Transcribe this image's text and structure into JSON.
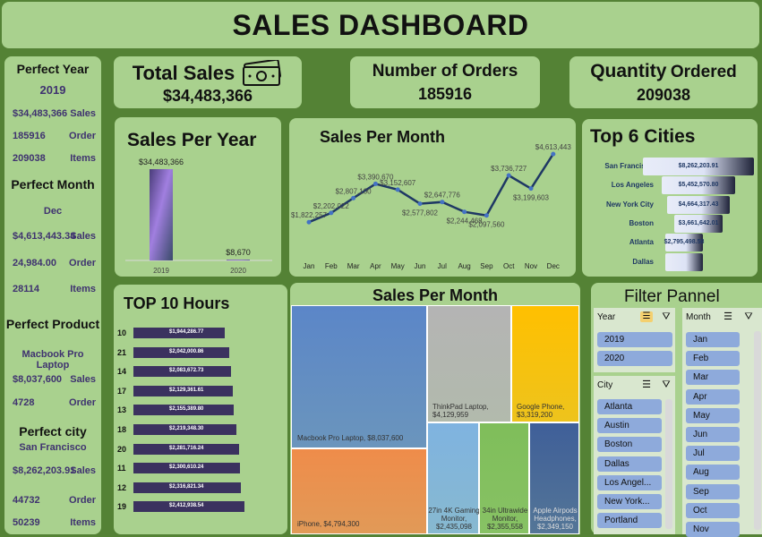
{
  "title": "SALES DASHBOARD",
  "left": {
    "perfect_year": {
      "title": "Perfect Year",
      "year": "2019",
      "sales": "$34,483,366",
      "sales_label": "Sales",
      "orders": "185916",
      "orders_label": "Order",
      "items": "209038",
      "items_label": "Items"
    },
    "perfect_month": {
      "title": "Perfect Month",
      "month": "Dec",
      "sales": "$4,613,443.34",
      "sales_label": "Sales",
      "orders": "24,984.00",
      "orders_label": "Order",
      "items": "28114",
      "items_label": "Items"
    },
    "perfect_product": {
      "title": "Perfect Product",
      "product": "Macbook Pro Laptop",
      "sales": "$8,037,600",
      "sales_label": "Sales",
      "orders": "4728",
      "orders_label": "Order"
    },
    "perfect_city": {
      "title": "Perfect city",
      "city": "San Francisco",
      "sales": "$8,262,203.91",
      "sales_label": "Sales",
      "orders": "44732",
      "orders_label": "Order",
      "items": "50239",
      "items_label": "Items"
    }
  },
  "kpis": {
    "total_sales": {
      "title": "Total Sales",
      "value": "$34,483,366",
      "icon": "money-icon"
    },
    "orders": {
      "title": "Number of Orders",
      "value": "185916"
    },
    "quantity": {
      "title_a": "Quantity",
      "title_b": "Ordered",
      "value": "209038"
    }
  },
  "sales_per_year": {
    "title": "Sales Per Year",
    "chart_data": {
      "type": "bar",
      "categories": [
        "2019",
        "2020"
      ],
      "values": [
        34483366,
        8670
      ],
      "labels": [
        "$34,483,366",
        "$8,670"
      ]
    }
  },
  "sales_per_month_line": {
    "title": "Sales Per Month",
    "chart_data": {
      "type": "line",
      "categories": [
        "Jan",
        "Feb",
        "Mar",
        "Apr",
        "May",
        "Jun",
        "Jul",
        "Aug",
        "Sep",
        "Oct",
        "Nov",
        "Dec"
      ],
      "values": [
        1822257,
        2202022,
        2807100,
        3390670,
        3152607,
        2577802,
        2647776,
        2244468,
        2097560,
        3736727,
        3199603,
        4613443
      ],
      "labels": [
        "$1,822,257",
        "$2,202,022",
        "$2,807,100",
        "$3,390,670",
        "$3,152,607",
        "$2,577,802",
        "$2,647,776",
        "$2,244,468",
        "$2,097,560",
        "$3,736,727",
        "$3,199,603",
        "$4,613,443"
      ]
    }
  },
  "top_cities": {
    "title": "Top 6 Cities",
    "chart_data": {
      "type": "bar",
      "categories": [
        "San Francisco",
        "Los Angeles",
        "New York City",
        "Boston",
        "Atlanta",
        "Dallas"
      ],
      "values": [
        8262203.91,
        5452570.8,
        4664317.43,
        3661642.01,
        2795498.58,
        2767975.4
      ],
      "labels": [
        "$8,262,203.91",
        "$5,452,570.80",
        "$4,664,317.43",
        "$3,661,642.01",
        "$2,795,498.58",
        ""
      ]
    }
  },
  "top_hours": {
    "title": "TOP 10 Hours",
    "chart_data": {
      "type": "bar",
      "categories": [
        "10",
        "21",
        "14",
        "17",
        "13",
        "18",
        "20",
        "11",
        "12",
        "19"
      ],
      "values": [
        1944286.77,
        2042000.86,
        2083672.73,
        2129361.61,
        2155389.8,
        2219348.3,
        2281716.24,
        2300610.24,
        2316821.34,
        2412938.54
      ],
      "labels": [
        "$1,944,286.77",
        "$2,042,000.86",
        "$2,083,672.73",
        "$2,129,361.61",
        "$2,155,389.80",
        "$2,219,348.30",
        "$2,281,716.24",
        "$2,300,610.24",
        "$2,316,821.34",
        "$2,412,938.54"
      ]
    }
  },
  "treemap": {
    "title": "Sales Per Month",
    "chart_data": {
      "type": "treemap",
      "items": [
        {
          "name": "Macbook Pro Laptop",
          "value": 8037600,
          "label": "$8,037,600",
          "color": "#5b86c8"
        },
        {
          "name": "iPhone",
          "value": 4794300,
          "label": "$4,794,300",
          "color": "#ef8c4a"
        },
        {
          "name": "ThinkPad Laptop",
          "value": 4129959,
          "label": "$4,129,959",
          "color": "#b4b4b4"
        },
        {
          "name": "Google Phone",
          "value": 3319200,
          "label": "$3,319,200",
          "color": "#ffc000"
        },
        {
          "name": "27in 4K Gaming Monitor",
          "value": 2435098,
          "label": "$2,435,098",
          "color": "#7fb3e0"
        },
        {
          "name": "34in Ultrawide Monitor",
          "value": 2355558,
          "label": "$2,355,558",
          "color": "#7fbe5a"
        },
        {
          "name": "Apple Airpods Headphones",
          "value": 2349150,
          "label": "$2,349,150",
          "color": "#3f5f99"
        }
      ]
    }
  },
  "filter": {
    "title": "Filter Pannel",
    "year_label": "Year",
    "years": [
      "2019",
      "2020"
    ],
    "month_label": "Month",
    "months": [
      "Jan",
      "Feb",
      "Mar",
      "Apr",
      "May",
      "Jun",
      "Jul",
      "Aug",
      "Sep",
      "Oct",
      "Nov"
    ],
    "city_label": "City",
    "cities": [
      "Atlanta",
      "Austin",
      "Boston",
      "Dallas",
      "Los Angel...",
      "New York...",
      "Portland"
    ]
  }
}
